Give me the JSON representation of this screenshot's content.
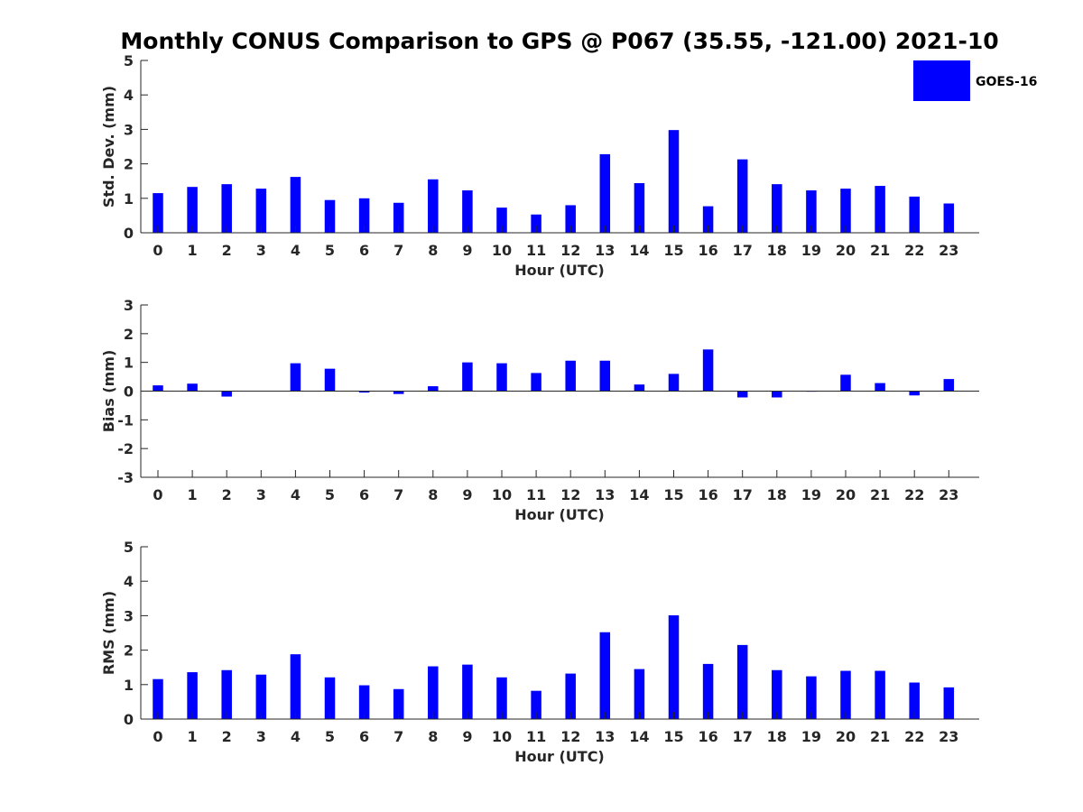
{
  "title": "Monthly CONUS Comparison to GPS @ P067 (35.55, -121.00) 2021-10",
  "legend": {
    "label": "GOES-16",
    "color": "#0000ff",
    "placement": "top-right"
  },
  "colors": {
    "bar": "#0000ff",
    "axis": "#262626"
  },
  "chart_data": [
    {
      "type": "bar",
      "xlabel": "Hour (UTC)",
      "ylabel": "Std. Dev. (mm)",
      "ylim": [
        0,
        5
      ],
      "yticks": [
        0,
        1,
        2,
        3,
        4,
        5
      ],
      "categories": [
        "0",
        "1",
        "2",
        "3",
        "4",
        "5",
        "6",
        "7",
        "8",
        "9",
        "10",
        "11",
        "12",
        "13",
        "14",
        "15",
        "16",
        "17",
        "18",
        "19",
        "20",
        "21",
        "22",
        "23"
      ],
      "series": [
        {
          "name": "GOES-16",
          "values": [
            1.15,
            1.33,
            1.41,
            1.28,
            1.62,
            0.95,
            1.0,
            0.87,
            1.55,
            1.23,
            0.73,
            0.53,
            0.8,
            2.28,
            1.44,
            2.98,
            0.77,
            2.13,
            1.41,
            1.23,
            1.28,
            1.36,
            1.05,
            0.85
          ]
        }
      ],
      "grid": false
    },
    {
      "type": "bar",
      "xlabel": "Hour (UTC)",
      "ylabel": "Bias (mm)",
      "ylim": [
        -3,
        3
      ],
      "yticks": [
        -3,
        -2,
        -1,
        0,
        1,
        2,
        3
      ],
      "categories": [
        "0",
        "1",
        "2",
        "3",
        "4",
        "5",
        "6",
        "7",
        "8",
        "9",
        "10",
        "11",
        "12",
        "13",
        "14",
        "15",
        "16",
        "17",
        "18",
        "19",
        "20",
        "21",
        "22",
        "23"
      ],
      "series": [
        {
          "name": "GOES-16",
          "values": [
            0.2,
            0.26,
            -0.19,
            0.0,
            0.97,
            0.78,
            -0.05,
            -0.1,
            0.17,
            1.0,
            0.97,
            0.63,
            1.06,
            1.06,
            0.23,
            0.6,
            1.45,
            -0.22,
            -0.22,
            -0.02,
            0.57,
            0.28,
            -0.15,
            0.42
          ]
        }
      ],
      "grid": false
    },
    {
      "type": "bar",
      "xlabel": "Hour (UTC)",
      "ylabel": "RMS (mm)",
      "ylim": [
        0,
        5
      ],
      "yticks": [
        0,
        1,
        2,
        3,
        4,
        5
      ],
      "categories": [
        "0",
        "1",
        "2",
        "3",
        "4",
        "5",
        "6",
        "7",
        "8",
        "9",
        "10",
        "11",
        "12",
        "13",
        "14",
        "15",
        "16",
        "17",
        "18",
        "19",
        "20",
        "21",
        "22",
        "23"
      ],
      "series": [
        {
          "name": "GOES-16",
          "values": [
            1.16,
            1.36,
            1.42,
            1.29,
            1.88,
            1.21,
            0.98,
            0.87,
            1.53,
            1.58,
            1.21,
            0.82,
            1.32,
            2.52,
            1.45,
            3.01,
            1.6,
            2.15,
            1.42,
            1.24,
            1.4,
            1.4,
            1.06,
            0.92
          ]
        }
      ],
      "grid": false
    }
  ]
}
